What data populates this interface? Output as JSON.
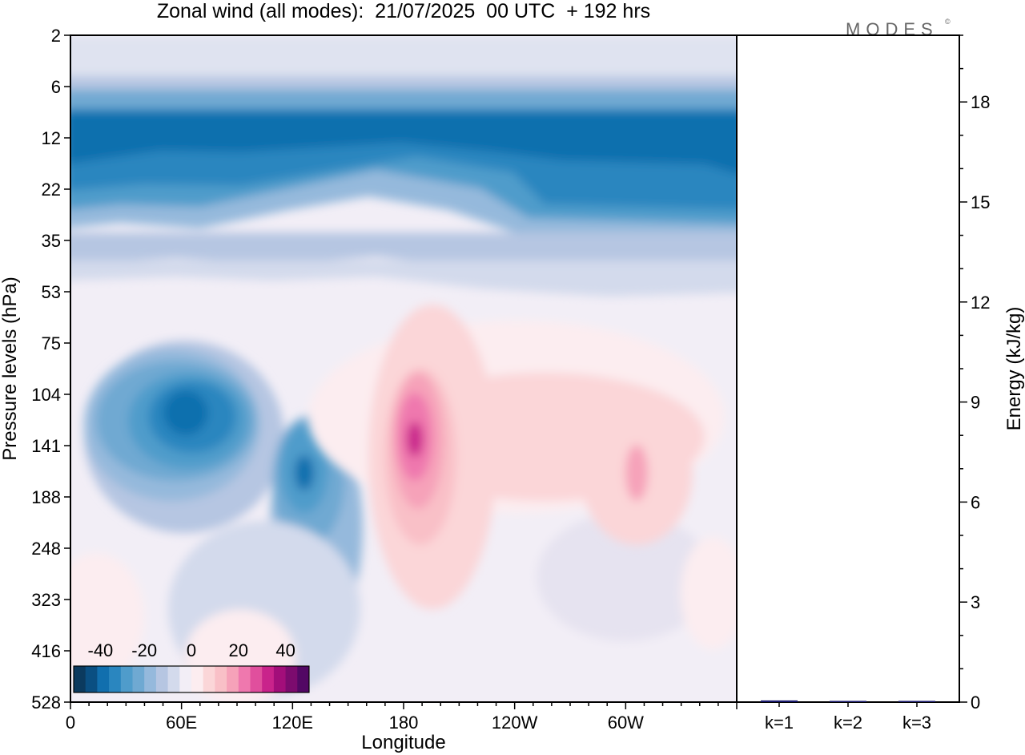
{
  "chart_data": [
    {
      "type": "heatmap",
      "title": "Zonal wind (all modes):  21/07/2025  00 UTC  + 192 hrs",
      "xlabel": "Longitude",
      "ylabel": "Pressure levels (hPa)",
      "x_ticks": [
        "0",
        "60E",
        "120E",
        "180",
        "120W",
        "60W"
      ],
      "x_tick_degrees": [
        0,
        60,
        120,
        180,
        240,
        300
      ],
      "x_range_degrees": [
        0,
        360
      ],
      "y_ticks": [
        "2",
        "6",
        "12",
        "22",
        "35",
        "53",
        "75",
        "104",
        "141",
        "188",
        "248",
        "323",
        "416",
        "528"
      ],
      "colorbar": {
        "ticks": [
          "-40",
          "-20",
          "0",
          "20",
          "40"
        ],
        "tick_values": [
          -40,
          -20,
          0,
          20,
          40
        ],
        "range": [
          -50,
          50
        ],
        "levels": [
          -45,
          -40,
          -35,
          -30,
          -25,
          -20,
          -15,
          -10,
          -5,
          0,
          5,
          10,
          15,
          20,
          25,
          30,
          35,
          40,
          45,
          50
        ],
        "colors": [
          "#0b3a5e",
          "#0a4f82",
          "#116fae",
          "#2a86bf",
          "#4f9ccb",
          "#6fa9d2",
          "#95b9dc",
          "#b6c6e2",
          "#d3daec",
          "#f2eef6",
          "#fcedf0",
          "#fbd6d8",
          "#f9c0c7",
          "#f6a2b9",
          "#ef78ae",
          "#e04f9d",
          "#c9238b",
          "#a30e7a",
          "#7c0b6e",
          "#520864"
        ]
      },
      "features": [
        {
          "lon": 15,
          "level": 12,
          "value": -38
        },
        {
          "lon": 100,
          "level": 12,
          "value": -35
        },
        {
          "lon": 190,
          "level": 12,
          "value": -36
        },
        {
          "lon": 280,
          "level": 12,
          "value": -37
        },
        {
          "lon": 350,
          "level": 12,
          "value": -38
        },
        {
          "lon": 60,
          "level": 104,
          "value": -37
        },
        {
          "lon": 125,
          "level": 141,
          "value": -33
        },
        {
          "lon": 186,
          "level": 141,
          "value": 40
        },
        {
          "lon": 310,
          "level": 141,
          "value": 13
        },
        {
          "lon": 300,
          "level": 35,
          "value": -22
        },
        {
          "lon": 230,
          "level": 104,
          "value": 6
        }
      ]
    },
    {
      "type": "bar",
      "ylabel": "Energy (kJ/kg)",
      "categories": [
        "k=1",
        "k=2",
        "k=3"
      ],
      "values": [
        0.05,
        0.03,
        0.01
      ],
      "ylim": [
        0,
        20
      ],
      "y_ticks": [
        "0",
        "3",
        "6",
        "9",
        "12",
        "15",
        "18"
      ],
      "y_tick_values": [
        0,
        3,
        6,
        9,
        12,
        15,
        18
      ],
      "minor_tick_step": 1,
      "bar_color": "#1a1a6e"
    }
  ],
  "logo": {
    "text": "MODES",
    "mark": "©"
  }
}
